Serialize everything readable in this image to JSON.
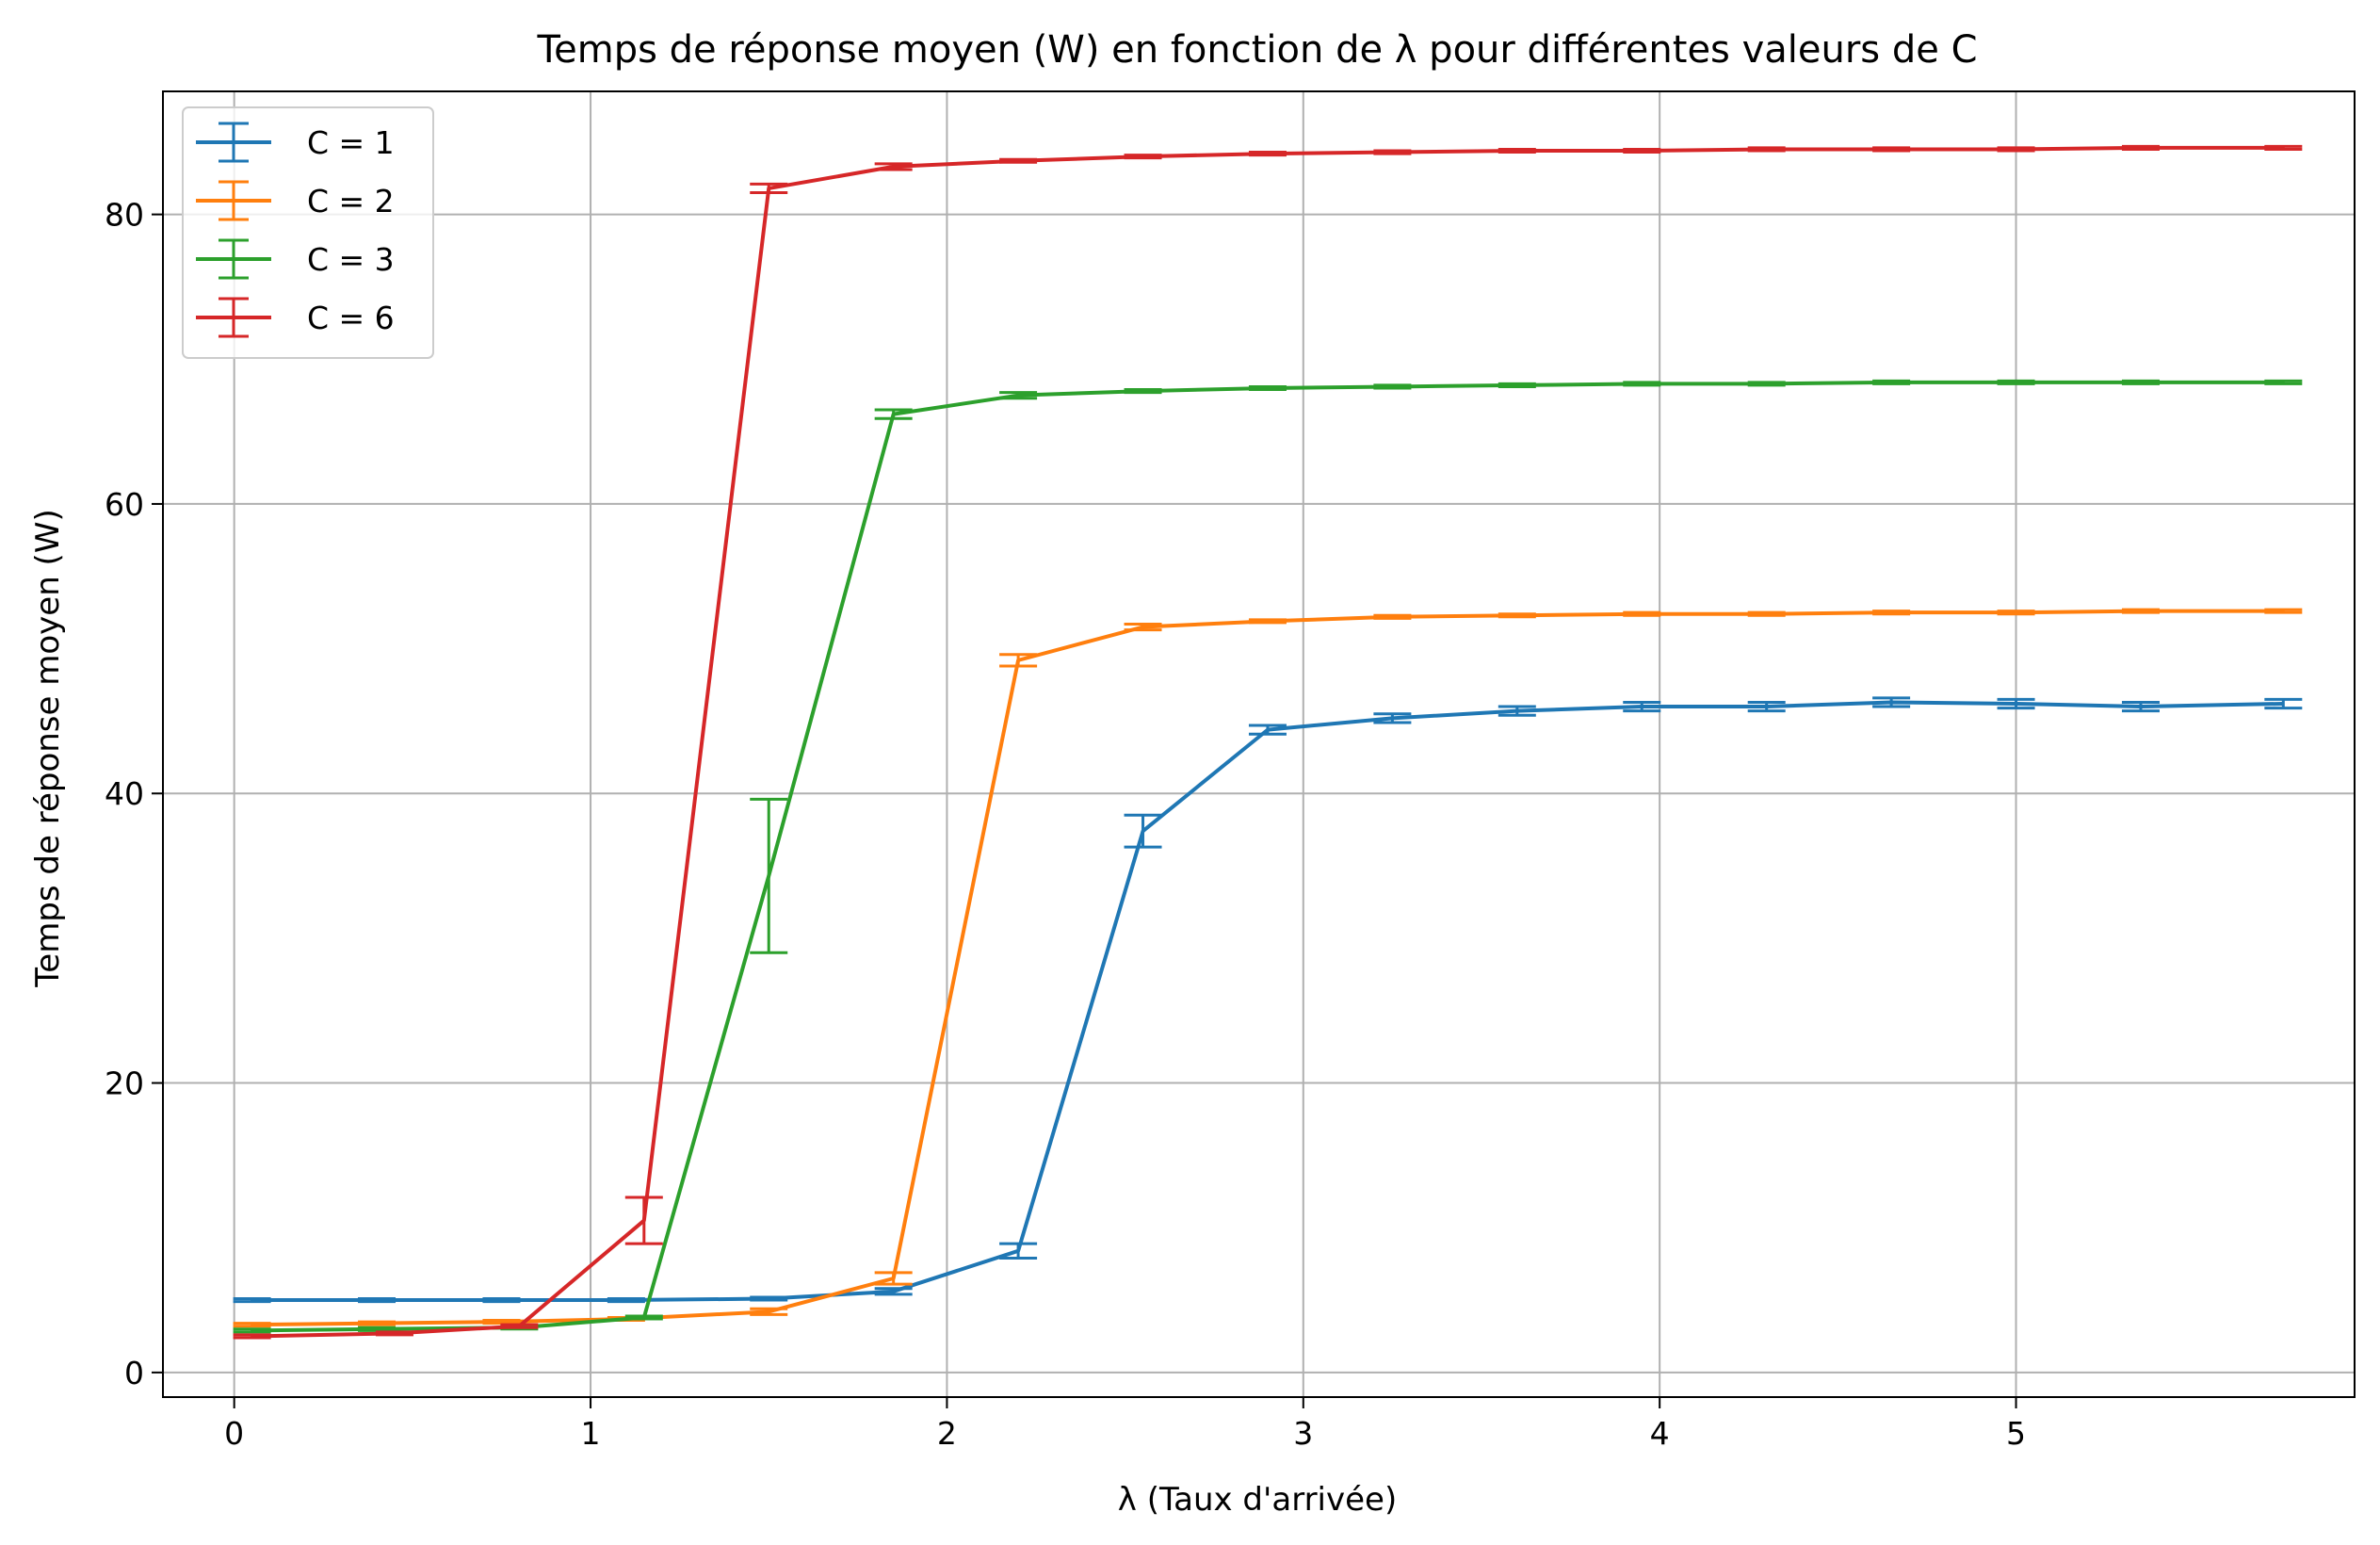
{
  "chart_data": {
    "type": "line",
    "title": "Temps de réponse moyen (W) en fonction de λ pour différentes valeurs de C",
    "xlabel": "λ (Taux d'arrivée)",
    "ylabel": "Temps de réponse moyen (W)",
    "xlim": [
      -0.2,
      5.95
    ],
    "ylim": [
      -1.7,
      88.5
    ],
    "xticks": [
      0,
      1,
      2,
      3,
      4,
      5
    ],
    "xtick_labels": [
      "0",
      "1",
      "2",
      "3",
      "4",
      "5"
    ],
    "yticks": [
      0,
      20,
      40,
      60,
      80
    ],
    "ytick_labels": [
      "0",
      "20",
      "40",
      "60",
      "80"
    ],
    "grid": true,
    "legend_position": "upper-left",
    "series": [
      {
        "name": "C = 1",
        "color": "#1f77b4",
        "points": [
          {
            "x": 0.05,
            "y": 5.0,
            "err": 0.1
          },
          {
            "x": 0.4,
            "y": 5.0,
            "err": 0.1
          },
          {
            "x": 0.75,
            "y": 5.0,
            "err": 0.1
          },
          {
            "x": 1.1,
            "y": 5.0,
            "err": 0.1
          },
          {
            "x": 1.5,
            "y": 5.1,
            "err": 0.1
          },
          {
            "x": 1.85,
            "y": 5.6,
            "err": 0.2
          },
          {
            "x": 2.2,
            "y": 8.4,
            "err": 0.5
          },
          {
            "x": 2.55,
            "y": 37.4,
            "err": 1.1
          },
          {
            "x": 2.9,
            "y": 44.4,
            "err": 0.3
          },
          {
            "x": 3.25,
            "y": 45.2,
            "err": 0.3
          },
          {
            "x": 3.6,
            "y": 45.7,
            "err": 0.3
          },
          {
            "x": 3.95,
            "y": 46.0,
            "err": 0.3
          },
          {
            "x": 4.3,
            "y": 46.0,
            "err": 0.3
          },
          {
            "x": 4.65,
            "y": 46.3,
            "err": 0.3
          },
          {
            "x": 5.0,
            "y": 46.2,
            "err": 0.3
          },
          {
            "x": 5.35,
            "y": 46.0,
            "err": 0.3
          },
          {
            "x": 5.75,
            "y": 46.2,
            "err": 0.3
          }
        ]
      },
      {
        "name": "C = 2",
        "color": "#ff7f0e",
        "points": [
          {
            "x": 0.05,
            "y": 3.3,
            "err": 0.1
          },
          {
            "x": 0.4,
            "y": 3.4,
            "err": 0.1
          },
          {
            "x": 0.75,
            "y": 3.5,
            "err": 0.1
          },
          {
            "x": 1.1,
            "y": 3.7,
            "err": 0.1
          },
          {
            "x": 1.5,
            "y": 4.2,
            "err": 0.2
          },
          {
            "x": 1.85,
            "y": 6.5,
            "err": 0.4
          },
          {
            "x": 2.2,
            "y": 49.2,
            "err": 0.4
          },
          {
            "x": 2.55,
            "y": 51.5,
            "err": 0.2
          },
          {
            "x": 2.9,
            "y": 51.9,
            "err": 0.1
          },
          {
            "x": 3.25,
            "y": 52.2,
            "err": 0.1
          },
          {
            "x": 3.6,
            "y": 52.3,
            "err": 0.1
          },
          {
            "x": 3.95,
            "y": 52.4,
            "err": 0.1
          },
          {
            "x": 4.3,
            "y": 52.4,
            "err": 0.1
          },
          {
            "x": 4.65,
            "y": 52.5,
            "err": 0.1
          },
          {
            "x": 5.0,
            "y": 52.5,
            "err": 0.1
          },
          {
            "x": 5.35,
            "y": 52.6,
            "err": 0.1
          },
          {
            "x": 5.75,
            "y": 52.6,
            "err": 0.1
          }
        ]
      },
      {
        "name": "C = 3",
        "color": "#2ca02c",
        "points": [
          {
            "x": 0.05,
            "y": 2.9,
            "err": 0.1
          },
          {
            "x": 0.4,
            "y": 3.0,
            "err": 0.1
          },
          {
            "x": 0.8,
            "y": 3.1,
            "err": 0.1
          },
          {
            "x": 1.15,
            "y": 3.8,
            "err": 0.1
          },
          {
            "x": 1.5,
            "y": 34.3,
            "err": 5.3
          },
          {
            "x": 1.85,
            "y": 66.2,
            "err": 0.3
          },
          {
            "x": 2.2,
            "y": 67.5,
            "err": 0.2
          },
          {
            "x": 2.55,
            "y": 67.8,
            "err": 0.1
          },
          {
            "x": 2.9,
            "y": 68.0,
            "err": 0.1
          },
          {
            "x": 3.25,
            "y": 68.1,
            "err": 0.1
          },
          {
            "x": 3.6,
            "y": 68.2,
            "err": 0.1
          },
          {
            "x": 3.95,
            "y": 68.3,
            "err": 0.1
          },
          {
            "x": 4.3,
            "y": 68.3,
            "err": 0.1
          },
          {
            "x": 4.65,
            "y": 68.4,
            "err": 0.1
          },
          {
            "x": 5.0,
            "y": 68.4,
            "err": 0.1
          },
          {
            "x": 5.35,
            "y": 68.4,
            "err": 0.1
          },
          {
            "x": 5.75,
            "y": 68.4,
            "err": 0.1
          }
        ]
      },
      {
        "name": "C = 6",
        "color": "#d62728",
        "points": [
          {
            "x": 0.05,
            "y": 2.5,
            "err": 0.1
          },
          {
            "x": 0.45,
            "y": 2.7,
            "err": 0.1
          },
          {
            "x": 0.8,
            "y": 3.2,
            "err": 0.1
          },
          {
            "x": 1.15,
            "y": 10.5,
            "err": 1.6
          },
          {
            "x": 1.5,
            "y": 81.8,
            "err": 0.3
          },
          {
            "x": 1.85,
            "y": 83.3,
            "err": 0.2
          },
          {
            "x": 2.2,
            "y": 83.7,
            "err": 0.1
          },
          {
            "x": 2.55,
            "y": 84.0,
            "err": 0.1
          },
          {
            "x": 2.9,
            "y": 84.2,
            "err": 0.1
          },
          {
            "x": 3.25,
            "y": 84.3,
            "err": 0.1
          },
          {
            "x": 3.6,
            "y": 84.4,
            "err": 0.1
          },
          {
            "x": 3.95,
            "y": 84.4,
            "err": 0.1
          },
          {
            "x": 4.3,
            "y": 84.5,
            "err": 0.1
          },
          {
            "x": 4.65,
            "y": 84.5,
            "err": 0.1
          },
          {
            "x": 5.0,
            "y": 84.5,
            "err": 0.1
          },
          {
            "x": 5.35,
            "y": 84.6,
            "err": 0.1
          },
          {
            "x": 5.75,
            "y": 84.6,
            "err": 0.1
          }
        ]
      }
    ]
  }
}
